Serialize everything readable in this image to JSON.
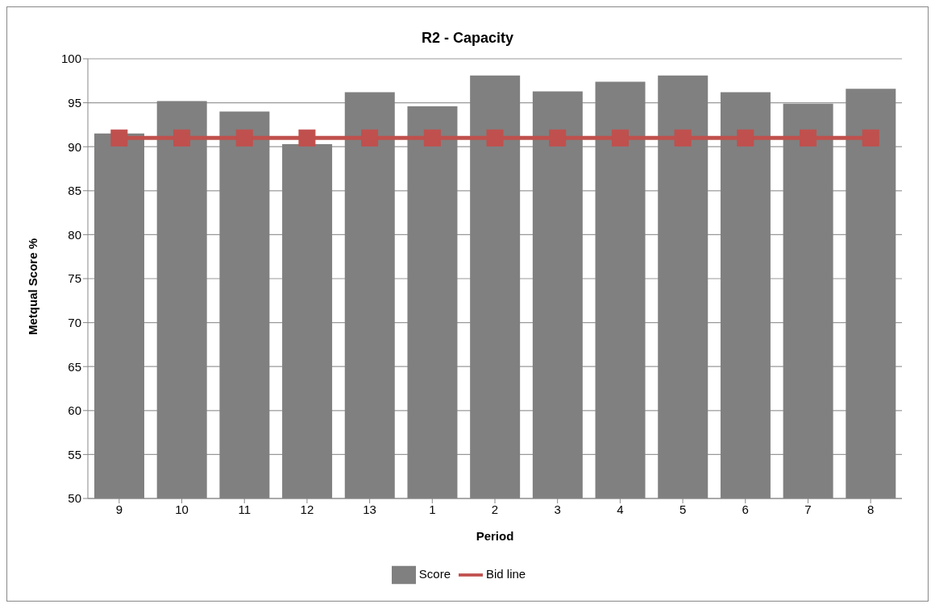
{
  "chart_data": {
    "type": "bar",
    "title": "R2 - Capacity",
    "xlabel": "Period",
    "ylabel": "Metqual Score %",
    "categories": [
      "9",
      "10",
      "11",
      "12",
      "13",
      "1",
      "2",
      "3",
      "4",
      "5",
      "6",
      "7",
      "8"
    ],
    "series": [
      {
        "name": "Score",
        "color": "#808080",
        "values": [
          91.5,
          95.2,
          94.0,
          90.3,
          96.2,
          94.6,
          98.1,
          96.3,
          97.4,
          98.1,
          96.2,
          94.9,
          96.6
        ]
      },
      {
        "name": "Bid line",
        "type": "line",
        "color": "#c0504d",
        "marker": "square",
        "line_style": "solid",
        "values": [
          91,
          91,
          91,
          91,
          91,
          91,
          91,
          91,
          91,
          91,
          91,
          91,
          91
        ]
      }
    ],
    "ylim": [
      50,
      100
    ],
    "yticks": [
      50,
      55,
      60,
      65,
      70,
      75,
      80,
      85,
      90,
      95,
      100
    ],
    "grid": "y",
    "legend": "bottom"
  }
}
